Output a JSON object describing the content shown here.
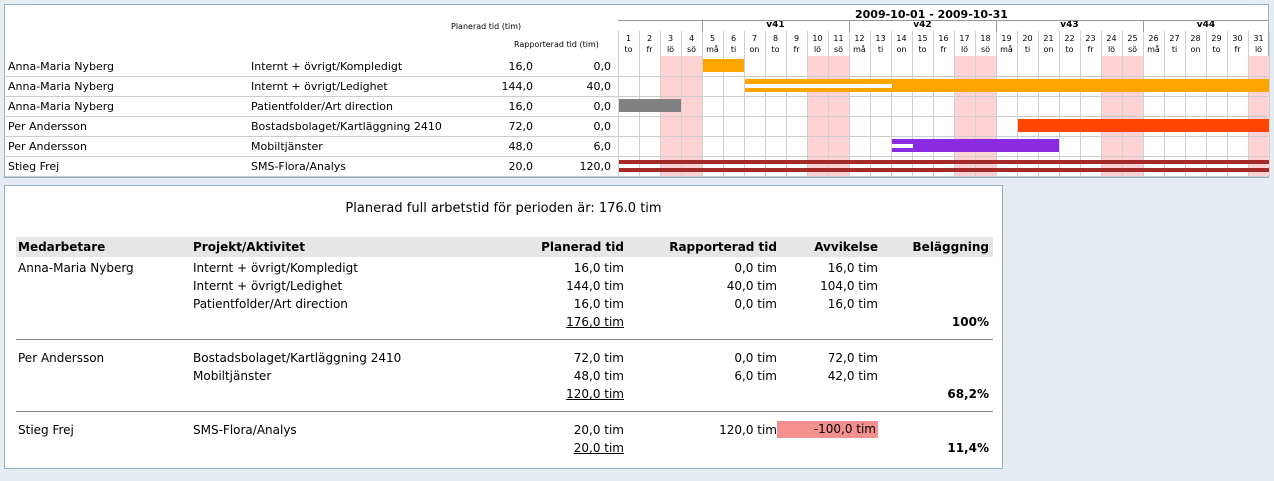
{
  "gantt": {
    "period": "2009-10-01 - 2009-10-31",
    "planned_header": "Planerad tid (tim)",
    "reported_header": "Rapporterad tid (tim)",
    "weeks": [
      {
        "label": "v41",
        "start_day": 5,
        "end_day": 11
      },
      {
        "label": "v42",
        "start_day": 12,
        "end_day": 18
      },
      {
        "label": "v43",
        "start_day": 19,
        "end_day": 25
      },
      {
        "label": "v44",
        "start_day": 26,
        "end_day": 31
      }
    ],
    "days": [
      {
        "n": "1",
        "d": "to"
      },
      {
        "n": "2",
        "d": "fr"
      },
      {
        "n": "3",
        "d": "lö"
      },
      {
        "n": "4",
        "d": "sö"
      },
      {
        "n": "5",
        "d": "må"
      },
      {
        "n": "6",
        "d": "ti"
      },
      {
        "n": "7",
        "d": "on"
      },
      {
        "n": "8",
        "d": "to"
      },
      {
        "n": "9",
        "d": "fr"
      },
      {
        "n": "10",
        "d": "lö"
      },
      {
        "n": "11",
        "d": "sö"
      },
      {
        "n": "12",
        "d": "må"
      },
      {
        "n": "13",
        "d": "ti"
      },
      {
        "n": "14",
        "d": "on"
      },
      {
        "n": "15",
        "d": "to"
      },
      {
        "n": "16",
        "d": "fr"
      },
      {
        "n": "17",
        "d": "lö"
      },
      {
        "n": "18",
        "d": "sö"
      },
      {
        "n": "19",
        "d": "må"
      },
      {
        "n": "20",
        "d": "ti"
      },
      {
        "n": "21",
        "d": "on"
      },
      {
        "n": "22",
        "d": "to"
      },
      {
        "n": "23",
        "d": "fr"
      },
      {
        "n": "24",
        "d": "lö"
      },
      {
        "n": "25",
        "d": "sö"
      },
      {
        "n": "26",
        "d": "må"
      },
      {
        "n": "27",
        "d": "ti"
      },
      {
        "n": "28",
        "d": "on"
      },
      {
        "n": "29",
        "d": "to"
      },
      {
        "n": "30",
        "d": "fr"
      },
      {
        "n": "31",
        "d": "lö"
      }
    ],
    "rows": [
      {
        "name": "Anna-Maria Nyberg",
        "project": "Internt + övrigt/Kompledigt",
        "planned": "16,0",
        "reported": "0,0",
        "bar": {
          "start": 5,
          "end": 6,
          "color": "#ffa500",
          "progress": 0
        }
      },
      {
        "name": "Anna-Maria Nyberg",
        "project": "Internt + övrigt/Ledighet",
        "planned": "144,0",
        "reported": "40,0",
        "bar": {
          "start": 7,
          "end": 31,
          "color": "#ffa500",
          "progress": 0.28
        }
      },
      {
        "name": "Anna-Maria Nyberg",
        "project": "Patientfolder/Art direction",
        "planned": "16,0",
        "reported": "0,0",
        "bar": {
          "start": 1,
          "end": 3,
          "color": "#808080",
          "progress": 0
        }
      },
      {
        "name": "Per Andersson",
        "project": "Bostadsbolaget/Kartläggning 2410",
        "planned": "72,0",
        "reported": "0,0",
        "bar": {
          "start": 20,
          "end": 31,
          "color": "#ff4500",
          "progress": 0
        }
      },
      {
        "name": "Per Andersson",
        "project": "Mobiltjänster",
        "planned": "48,0",
        "reported": "6,0",
        "bar": {
          "start": 14,
          "end": 21,
          "color": "#8a2be2",
          "progress": 0.125
        }
      },
      {
        "name": "Stieg Frej",
        "project": "SMS-Flora/Analys",
        "planned": "20,0",
        "reported": "120,0",
        "bar": {
          "start": 1,
          "end": 31,
          "color": "#a52a2a",
          "progress": 0,
          "double": true
        }
      }
    ]
  },
  "summary": {
    "title": "Planerad full arbetstid för perioden är: 176.0 tim",
    "headers": {
      "employee": "Medarbetare",
      "project": "Projekt/Aktivitet",
      "planned": "Planerad tid",
      "reported": "Rapporterad tid",
      "deviation": "Avvikelse",
      "occupancy": "Beläggning"
    },
    "groups": [
      {
        "employee": "Anna-Maria Nyberg",
        "rows": [
          {
            "project": "Internt + övrigt/Kompledigt",
            "planned": "16,0 tim",
            "reported": "0,0 tim",
            "deviation": "16,0 tim",
            "negative": false
          },
          {
            "project": "Internt + övrigt/Ledighet",
            "planned": "144,0 tim",
            "reported": "40,0 tim",
            "deviation": "104,0 tim",
            "negative": false
          },
          {
            "project": "Patientfolder/Art direction",
            "planned": "16,0 tim",
            "reported": "0,0 tim",
            "deviation": "16,0 tim",
            "negative": false
          }
        ],
        "total": "176,0 tim",
        "occupancy": "100%"
      },
      {
        "employee": "Per Andersson",
        "rows": [
          {
            "project": "Bostadsbolaget/Kartläggning 2410",
            "planned": "72,0 tim",
            "reported": "0,0 tim",
            "deviation": "72,0 tim",
            "negative": false
          },
          {
            "project": "Mobiltjänster",
            "planned": "48,0 tim",
            "reported": "6,0 tim",
            "deviation": "42,0 tim",
            "negative": false
          }
        ],
        "total": "120,0 tim",
        "occupancy": "68,2%"
      },
      {
        "employee": "Stieg Frej",
        "rows": [
          {
            "project": "SMS-Flora/Analys",
            "planned": "20,0 tim",
            "reported": "120,0 tim",
            "deviation": "-100,0 tim",
            "negative": true
          }
        ],
        "total": "20,0 tim",
        "occupancy": "11,4%"
      }
    ]
  }
}
